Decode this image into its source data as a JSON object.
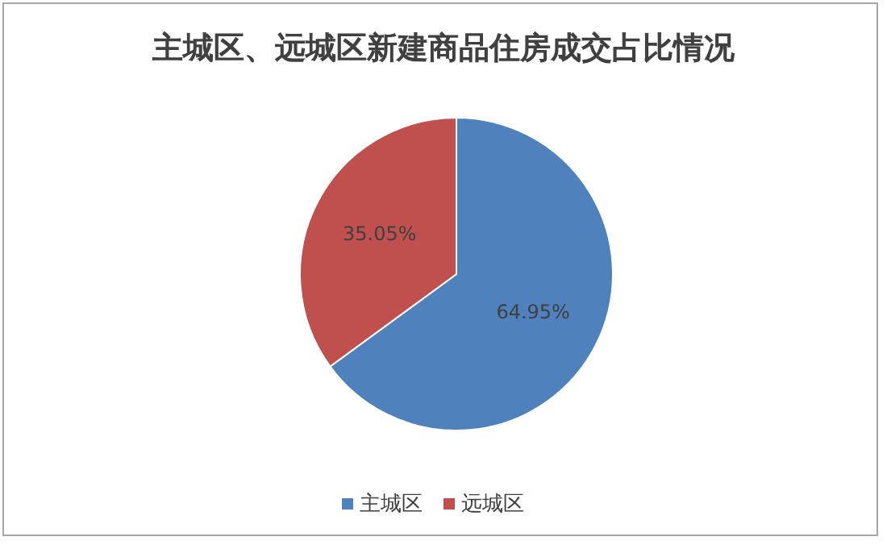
{
  "chart_data": {
    "type": "pie",
    "title": "主城区、远城区新建商品住房成交占比情况",
    "categories": [
      "主城区",
      "远城区"
    ],
    "values": [
      64.95,
      35.05
    ],
    "colors": [
      "#4f81bd",
      "#c0504d"
    ],
    "value_labels": [
      "64.95%",
      "35.05%"
    ],
    "legend": "bottom"
  }
}
